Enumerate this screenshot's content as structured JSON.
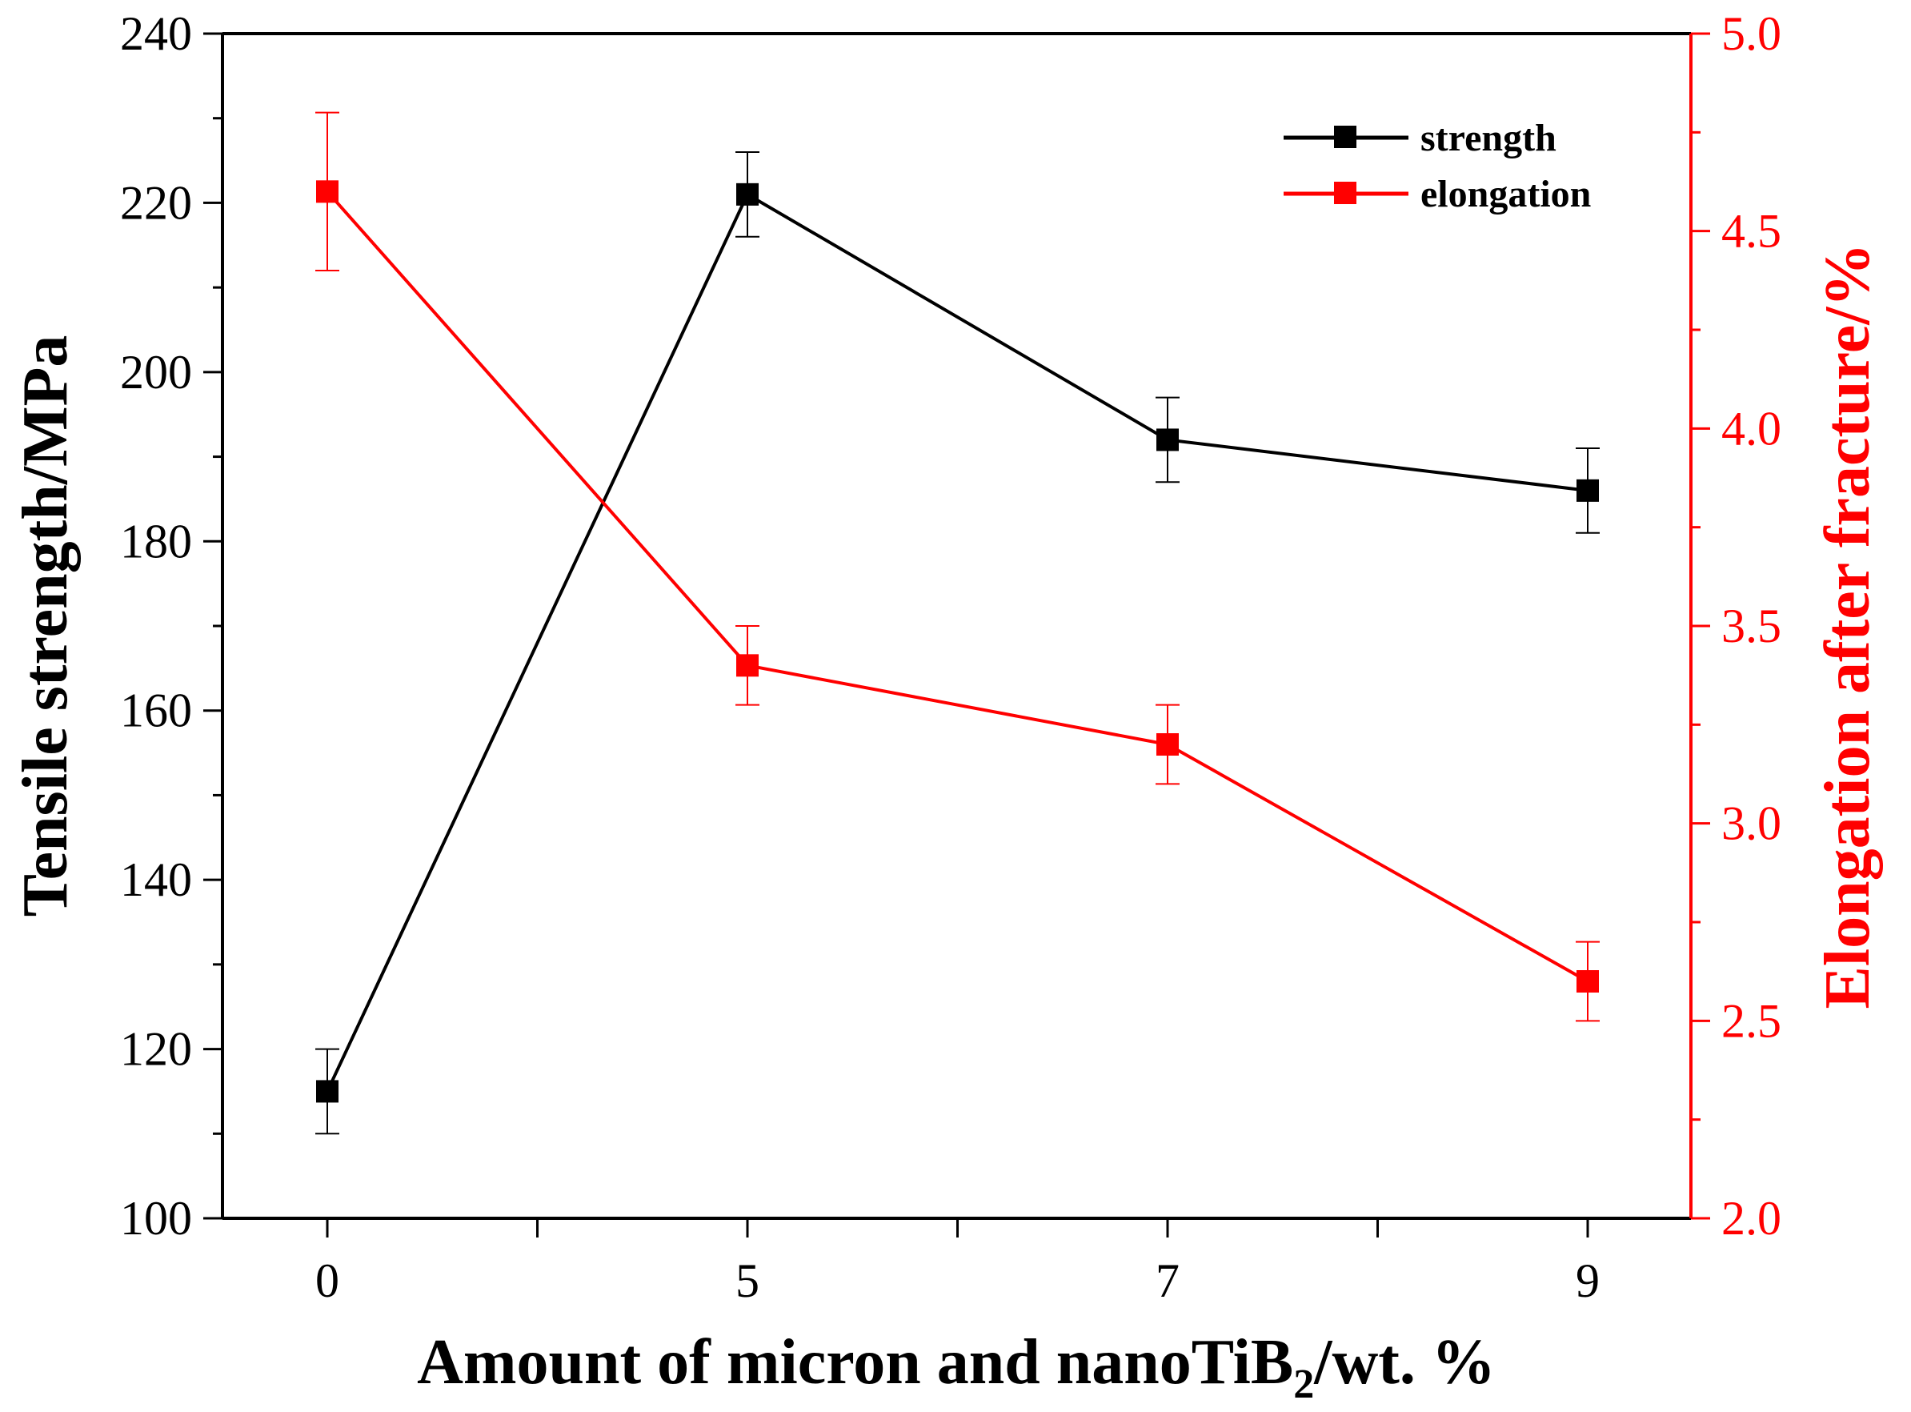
{
  "chart_data": {
    "type": "line",
    "categories": [
      "0",
      "5",
      "7",
      "9"
    ],
    "xlabel": "Amount of micron and nanoTiB",
    "xlabel_sub": "2",
    "xlabel_suffix": "/wt. %",
    "ylabel_left": "Tensile strength/MPa",
    "ylabel_right": "Elongation after fracture/%",
    "ylim_left": [
      100,
      240
    ],
    "ylim_right": [
      2.0,
      5.0
    ],
    "left_ticks": [
      "100",
      "120",
      "140",
      "160",
      "180",
      "200",
      "220",
      "240"
    ],
    "right_ticks": [
      "2.0",
      "2.5",
      "3.0",
      "3.5",
      "4.0",
      "4.5",
      "5.0"
    ],
    "series": [
      {
        "name": "strength",
        "axis": "left",
        "color": "#000000",
        "values": [
          115,
          221,
          192,
          186
        ],
        "errors": [
          5,
          5,
          5,
          5
        ]
      },
      {
        "name": "elongation",
        "axis": "right",
        "color": "#ff0000",
        "values": [
          4.6,
          3.4,
          3.2,
          2.6
        ],
        "errors": [
          0.2,
          0.1,
          0.1,
          0.1
        ]
      }
    ],
    "legend_position": "top-right"
  }
}
